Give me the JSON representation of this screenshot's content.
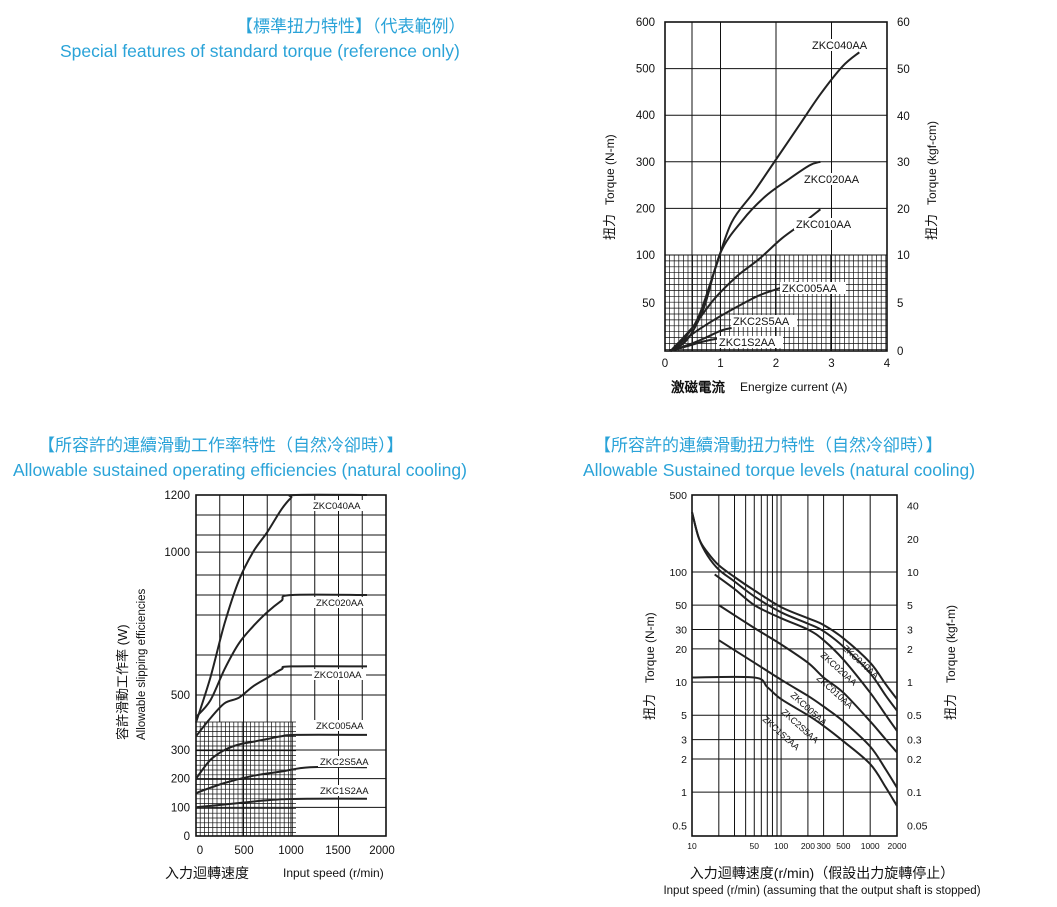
{
  "headers": {
    "torque_zh": "【標準扭力特性】（代表範例）",
    "torque_en": "Special features of standard torque  (reference only)",
    "eff_zh": "【所容許的連續滑動工作率特性（自然冷卻時）】",
    "eff_en": "Allowable sustained operating efficiencies (natural cooling)",
    "level_zh": "【所容許的連續滑動扭力特性（自然冷卻時）】",
    "level_en": "Allowable Sustained torque levels (natural cooling)"
  },
  "chart_data": [
    {
      "id": "torque",
      "type": "line",
      "xlabel_zh": "激磁電流",
      "xlabel_en": "Energize current (A)",
      "ylabel_zh": "扭力",
      "ylabel_en": "Torque (N-m)",
      "y2label_zh": "扭力",
      "y2label_en": "Torque (kgf-cm)",
      "xlim": [
        0,
        4
      ],
      "x_ticks": [
        "0",
        "1",
        "2",
        "3",
        "4"
      ],
      "y_ticks": [
        "50",
        "100",
        "200",
        "300",
        "400",
        "500",
        "600"
      ],
      "y2_ticks": [
        "0",
        "5",
        "10",
        "20",
        "30",
        "40",
        "50",
        "60"
      ],
      "series": [
        {
          "name": "ZKC040AA",
          "points": [
            [
              0.1,
              0
            ],
            [
              0.3,
              10
            ],
            [
              0.6,
              35
            ],
            [
              0.9,
              85
            ],
            [
              1.2,
              170
            ],
            [
              1.6,
              235
            ],
            [
              2.0,
              305
            ],
            [
              2.4,
              375
            ],
            [
              2.8,
              445
            ],
            [
              3.2,
              505
            ],
            [
              3.5,
              535
            ]
          ]
        },
        {
          "name": "ZKC020AA",
          "points": [
            [
              0.1,
              0
            ],
            [
              0.4,
              12
            ],
            [
              0.7,
              45
            ],
            [
              1.0,
              105
            ],
            [
              1.4,
              175
            ],
            [
              1.8,
              225
            ],
            [
              2.2,
              260
            ],
            [
              2.6,
              292
            ],
            [
              2.8,
              300
            ]
          ]
        },
        {
          "name": "ZKC010AA",
          "points": [
            [
              0.1,
              0
            ],
            [
              0.5,
              25
            ],
            [
              0.9,
              55
            ],
            [
              1.3,
              78
            ],
            [
              1.7,
              96
            ],
            [
              2.1,
              135
            ],
            [
              2.5,
              170
            ],
            [
              2.8,
              198
            ]
          ]
        },
        {
          "name": "ZKC005AA",
          "points": [
            [
              0.1,
              0
            ],
            [
              0.5,
              18
            ],
            [
              0.9,
              33
            ],
            [
              1.3,
              46
            ],
            [
              1.7,
              58
            ],
            [
              2.1,
              66
            ],
            [
              2.4,
              72
            ]
          ]
        },
        {
          "name": "ZKC2S5AA",
          "points": [
            [
              0.1,
              0
            ],
            [
              0.4,
              6
            ],
            [
              0.7,
              13
            ],
            [
              1.0,
              21
            ],
            [
              1.2,
              24
            ]
          ]
        },
        {
          "name": "ZKC1S2AA",
          "points": [
            [
              0.1,
              0
            ],
            [
              0.4,
              5
            ],
            [
              0.7,
              10
            ],
            [
              0.95,
              13
            ]
          ]
        }
      ]
    },
    {
      "id": "efficiency",
      "type": "line",
      "xlabel_zh": "入力迴轉速度",
      "xlabel_en": "Input speed (r/min)",
      "ylabel_zh": "容許滑動工作率 (W)",
      "ylabel_en": "Allowable slipping efficiencies",
      "xlim": [
        0,
        2000
      ],
      "x_ticks": [
        "0",
        "500",
        "1000",
        "1500",
        "2000"
      ],
      "y_ticks": [
        "0",
        "100",
        "200",
        "300",
        "500",
        "1000",
        "1200"
      ],
      "series": [
        {
          "name": "ZKC040AA",
          "points": [
            [
              0,
              400
            ],
            [
              150,
              560
            ],
            [
              300,
              750
            ],
            [
              450,
              900
            ],
            [
              600,
              1000
            ],
            [
              750,
              1070
            ],
            [
              900,
              1150
            ],
            [
              1000,
              1190
            ],
            [
              1050,
              1200
            ],
            [
              1800,
              1200
            ]
          ]
        },
        {
          "name": "ZKC020AA",
          "points": [
            [
              0,
              420
            ],
            [
              150,
              480
            ],
            [
              300,
              590
            ],
            [
              450,
              680
            ],
            [
              600,
              740
            ],
            [
              750,
              790
            ],
            [
              900,
              830
            ],
            [
              1000,
              850
            ],
            [
              1800,
              850
            ]
          ]
        },
        {
          "name": "ZKC010AA",
          "points": [
            [
              0,
              350
            ],
            [
              150,
              415
            ],
            [
              300,
              470
            ],
            [
              450,
              490
            ],
            [
              600,
              530
            ],
            [
              750,
              560
            ],
            [
              900,
              590
            ],
            [
              1000,
              600
            ],
            [
              1800,
              600
            ]
          ]
        },
        {
          "name": "ZKC005AA",
          "points": [
            [
              0,
              200
            ],
            [
              150,
              265
            ],
            [
              300,
              300
            ],
            [
              450,
              320
            ],
            [
              600,
              330
            ],
            [
              750,
              340
            ],
            [
              900,
              350
            ],
            [
              1050,
              355
            ],
            [
              1800,
              355
            ]
          ]
        },
        {
          "name": "ZKC2S5AA",
          "points": [
            [
              0,
              150
            ],
            [
              300,
              185
            ],
            [
              600,
              210
            ],
            [
              900,
              225
            ],
            [
              1200,
              240
            ],
            [
              1800,
              240
            ]
          ]
        },
        {
          "name": "ZKC1S2AA",
          "points": [
            [
              0,
              100
            ],
            [
              300,
              110
            ],
            [
              600,
              120
            ],
            [
              900,
              128
            ],
            [
              1200,
              130
            ],
            [
              1800,
              130
            ]
          ]
        }
      ]
    },
    {
      "id": "torque_levels",
      "type": "line",
      "xscale": "log",
      "yscale": "log",
      "xlabel_zh": "入力迴轉速度(r/min)（假設出力旋轉停止）",
      "xlabel_en": "Input speed (r/min)  (assuming that the output shaft is stopped)",
      "ylabel_zh": "扭力",
      "ylabel_en": "Torque (N-m)",
      "y2label_zh": "扭力",
      "y2label_en": "Torque (kgf-m)",
      "xlim": [
        10,
        2000
      ],
      "x_ticks": [
        "10",
        "50",
        "100",
        "200",
        "300",
        "500",
        "1000",
        "2000"
      ],
      "y_ticks": [
        "0.5",
        "1",
        "2",
        "3",
        "5",
        "10",
        "20",
        "30",
        "50",
        "100",
        "500"
      ],
      "y2_ticks": [
        "0.05",
        "0.1",
        "0.2",
        "0.3",
        "0.5",
        "1",
        "2",
        "3",
        "5",
        "10",
        "20",
        "40"
      ],
      "series": [
        {
          "name": "ZKC040AA",
          "points": [
            [
              10,
              350
            ],
            [
              12,
              200
            ],
            [
              15,
              150
            ],
            [
              20,
              115
            ],
            [
              30,
              90
            ],
            [
              50,
              68
            ],
            [
              100,
              48
            ],
            [
              200,
              38
            ],
            [
              300,
              33
            ],
            [
              500,
              25
            ],
            [
              1000,
              15
            ],
            [
              1500,
              9.5
            ],
            [
              2000,
              7
            ]
          ]
        },
        {
          "name": "ZKC020AA",
          "points": [
            [
              10,
              350
            ],
            [
              12,
              200
            ],
            [
              15,
              140
            ],
            [
              20,
              105
            ],
            [
              30,
              82
            ],
            [
              50,
              60
            ],
            [
              100,
              43
            ],
            [
              200,
              34
            ],
            [
              300,
              29
            ],
            [
              500,
              21
            ],
            [
              1000,
              12
            ],
            [
              1500,
              7.5
            ],
            [
              2000,
              5.5
            ]
          ]
        },
        {
          "name": "ZKC010AA",
          "points": [
            [
              18,
              95
            ],
            [
              30,
              70
            ],
            [
              50,
              50
            ],
            [
              100,
              38
            ],
            [
              200,
              30
            ],
            [
              300,
              24
            ],
            [
              500,
              16
            ],
            [
              1000,
              8
            ],
            [
              1500,
              5
            ],
            [
              2000,
              3.6
            ]
          ]
        },
        {
          "name": "ZKC005AA",
          "points": [
            [
              20,
              50
            ],
            [
              50,
              31
            ],
            [
              100,
              22
            ],
            [
              200,
              15
            ],
            [
              300,
              11
            ],
            [
              500,
              8
            ],
            [
              1000,
              4.4
            ],
            [
              1500,
              3
            ],
            [
              2000,
              2.3
            ]
          ]
        },
        {
          "name": "ZKC2S5AA",
          "points": [
            [
              20,
              24
            ],
            [
              50,
              15
            ],
            [
              100,
              10.5
            ],
            [
              200,
              7.5
            ],
            [
              300,
              6
            ],
            [
              500,
              4.4
            ],
            [
              1000,
              2.6
            ],
            [
              1500,
              1.6
            ],
            [
              2000,
              1.1
            ]
          ]
        },
        {
          "name": "ZKC1S2AA",
          "points": [
            [
              10,
              11
            ],
            [
              50,
              11
            ],
            [
              70,
              9
            ],
            [
              100,
              7
            ],
            [
              200,
              5
            ],
            [
              300,
              4
            ],
            [
              500,
              2.9
            ],
            [
              1000,
              1.8
            ],
            [
              1500,
              1.1
            ],
            [
              2000,
              0.75
            ]
          ]
        }
      ]
    }
  ]
}
